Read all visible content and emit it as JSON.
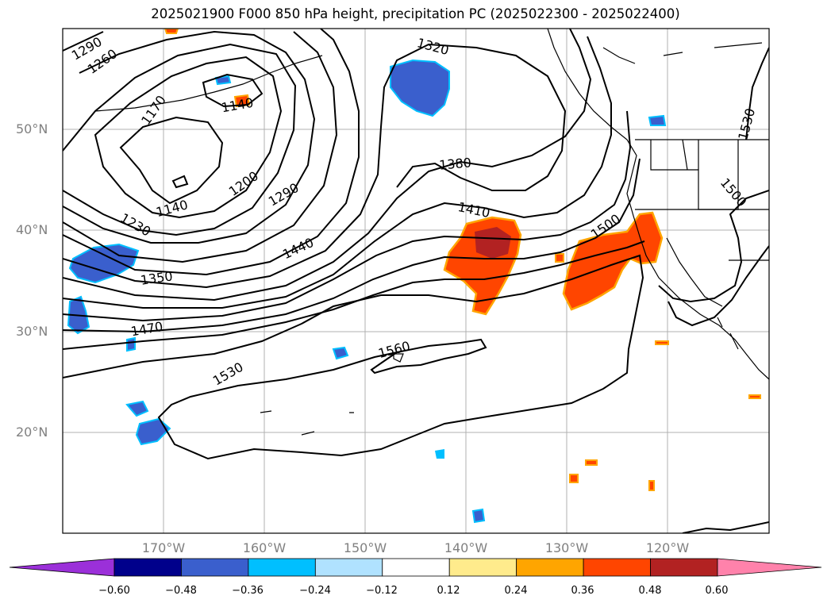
{
  "title": "2025021900 F000 850 hPa height, precipitation PC (2025022300 - 2025022400)",
  "map": {
    "lat_labels": [
      "50°N",
      "40°N",
      "30°N",
      "20°N"
    ],
    "lon_labels": [
      "170°W",
      "160°W",
      "150°W",
      "140°W",
      "130°W",
      "120°W"
    ],
    "contour_labels": [
      "1290",
      "1260",
      "1170",
      "1140",
      "1140",
      "1200",
      "1230",
      "1290",
      "1350",
      "1380",
      "1410",
      "1440",
      "1470",
      "1530",
      "1560",
      "1320",
      "1500",
      "1500",
      "1530"
    ]
  },
  "colorbar": {
    "ticks": [
      "−0.60",
      "−0.48",
      "−0.36",
      "−0.24",
      "−0.12",
      "0.12",
      "0.24",
      "0.36",
      "0.48",
      "0.60"
    ],
    "colors": [
      "#9b30d9",
      "#00008b",
      "#3a5fcd",
      "#00bfff",
      "#b0e2ff",
      "#ffffff",
      "#ffeb8c",
      "#ffa500",
      "#ff4500",
      "#b22222",
      "#ff82ab"
    ]
  },
  "colors": {
    "positive_strong": "#b22222",
    "positive": "#ff4500",
    "positive_light": "#ffa500",
    "negative": "#3a5fcd",
    "negative_light": "#00bfff"
  }
}
